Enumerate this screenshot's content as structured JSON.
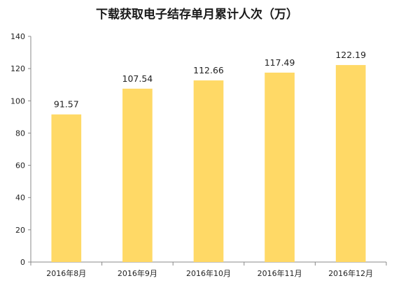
{
  "chart_data": {
    "type": "bar",
    "title": "下载获取电子结存单月累计人次（万）",
    "categories": [
      "2016年8月",
      "2016年9月",
      "2016年10月",
      "2016年11月",
      "2016年12月"
    ],
    "values": [
      91.57,
      107.54,
      112.66,
      117.49,
      122.19
    ],
    "value_labels": [
      "91.57",
      "107.54",
      "112.66",
      "117.49",
      "122.19"
    ],
    "ylim": [
      0,
      140
    ],
    "yticks": [
      0,
      20,
      40,
      60,
      80,
      100,
      120,
      140
    ],
    "xlabel": "",
    "ylabel": "",
    "grid": false,
    "legend": "none",
    "colors": {
      "bar": "#FFD966",
      "axis": "#888888",
      "text": "#222222"
    }
  }
}
